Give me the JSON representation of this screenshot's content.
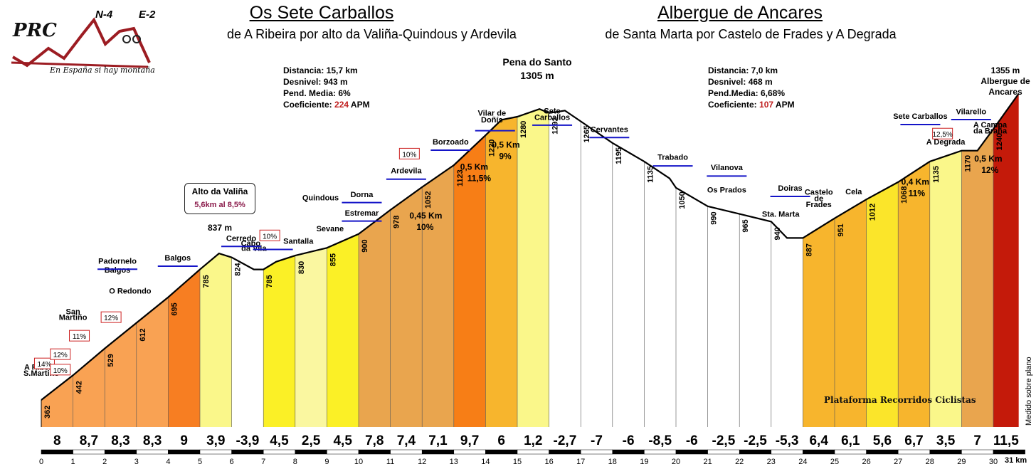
{
  "titles": {
    "left_title": "Os Sete Carballos",
    "left_subtitle": "de A Ribeira por alto da Valiña-Quindous y Ardevila",
    "right_title": "Albergue de Ancares",
    "right_subtitle": "de Santa Marta por Castelo de Frades y A Degrada"
  },
  "logo": {
    "brand": "PRC",
    "road1": "N-4",
    "road2": "E-2",
    "tagline": "En España si hay montaña"
  },
  "stats_left": {
    "distance": "Distancia: 15,7 km",
    "elevation": "Desnivel: 943 m",
    "avg_grade": "Pend. Media: 6%",
    "coef_label": "Coeficiente: ",
    "coef_value": "224",
    "coef_unit": " APM"
  },
  "stats_right": {
    "distance": "Distancia: 7,0 km",
    "elevation": "Desnivel: 468 m",
    "avg_grade": "Pend.Media: 6,68%",
    "coef_label": "Coeficiente: ",
    "coef_value": "107",
    "coef_unit": " APM"
  },
  "summit": {
    "name": "Pena do Santo",
    "altitude": "1305 m"
  },
  "finish": {
    "altitude": "1355 m",
    "name1": "Albergue de",
    "name2": "Ancares"
  },
  "callout": {
    "title": "Alto da Valiña",
    "detail": "5,6km al 8,5%",
    "altitude": "837 m"
  },
  "credit": "Plataforma Recorridos Ciclistas",
  "measured": "Medido sobre plano",
  "km_unit": "31 km",
  "colors": {
    "outline": "#000000",
    "arrow": "#1414c8",
    "grade_label_border": "#cc2222",
    "coef_red": "#c02020",
    "axis_bar": "#000000"
  },
  "chart_data": {
    "type": "area",
    "title": "Os Sete Carballos / Albergue de Ancares",
    "xlabel": "km",
    "ylabel": "",
    "x_ticks": [
      "0",
      "1",
      "2",
      "3",
      "4",
      "5",
      "6",
      "7",
      "8",
      "9",
      "10",
      "11",
      "12",
      "13",
      "14",
      "15",
      "16",
      "17",
      "18",
      "19",
      "20",
      "21",
      "22",
      "23",
      "24",
      "25",
      "26",
      "27",
      "28",
      "29",
      "30"
    ],
    "ylim": [
      300,
      1400
    ],
    "profile": [
      {
        "km": 0,
        "alt": 362
      },
      {
        "km": 1,
        "alt": 442
      },
      {
        "km": 2,
        "alt": 529
      },
      {
        "km": 3,
        "alt": 612
      },
      {
        "km": 4,
        "alt": 695
      },
      {
        "km": 5,
        "alt": 785
      },
      {
        "km": 5.6,
        "alt": 837
      },
      {
        "km": 6,
        "alt": 824
      },
      {
        "km": 6.7,
        "alt": 785
      },
      {
        "km": 7,
        "alt": 785
      },
      {
        "km": 7.4,
        "alt": 810
      },
      {
        "km": 8,
        "alt": 830
      },
      {
        "km": 8.6,
        "alt": 845
      },
      {
        "km": 9,
        "alt": 855
      },
      {
        "km": 10,
        "alt": 900
      },
      {
        "km": 11,
        "alt": 978
      },
      {
        "km": 12,
        "alt": 1052
      },
      {
        "km": 13,
        "alt": 1123
      },
      {
        "km": 14,
        "alt": 1220
      },
      {
        "km": 14.5,
        "alt": 1270
      },
      {
        "km": 15,
        "alt": 1280
      },
      {
        "km": 15.7,
        "alt": 1305
      },
      {
        "km": 16,
        "alt": 1292
      },
      {
        "km": 16.5,
        "alt": 1300
      },
      {
        "km": 17,
        "alt": 1265
      },
      {
        "km": 18,
        "alt": 1195
      },
      {
        "km": 19,
        "alt": 1135
      },
      {
        "km": 19.8,
        "alt": 1080
      },
      {
        "km": 20,
        "alt": 1050
      },
      {
        "km": 21,
        "alt": 990
      },
      {
        "km": 22,
        "alt": 965
      },
      {
        "km": 23,
        "alt": 940
      },
      {
        "km": 23.5,
        "alt": 887
      },
      {
        "km": 24,
        "alt": 887
      },
      {
        "km": 25,
        "alt": 951
      },
      {
        "km": 26,
        "alt": 1012
      },
      {
        "km": 27,
        "alt": 1068
      },
      {
        "km": 28,
        "alt": 1135
      },
      {
        "km": 29,
        "alt": 1170
      },
      {
        "km": 29.5,
        "alt": 1170
      },
      {
        "km": 30,
        "alt": 1240
      },
      {
        "km": 30.8,
        "alt": 1355
      }
    ],
    "segments": [
      {
        "start_km": 0,
        "end_km": 1,
        "grade": "8",
        "alt": "362",
        "color": "#f9a253"
      },
      {
        "start_km": 1,
        "end_km": 2,
        "grade": "8,7",
        "alt": "442",
        "color": "#f9a253"
      },
      {
        "start_km": 2,
        "end_km": 3,
        "grade": "8,3",
        "alt": "529",
        "color": "#f9a253"
      },
      {
        "start_km": 3,
        "end_km": 4,
        "grade": "8,3",
        "alt": "612",
        "color": "#f9a253"
      },
      {
        "start_km": 4,
        "end_km": 5,
        "grade": "9",
        "alt": "695",
        "color": "#f77e22"
      },
      {
        "start_km": 5,
        "end_km": 6,
        "grade": "3,9",
        "alt": "785",
        "color": "#faf78a"
      },
      {
        "start_km": 6,
        "end_km": 7,
        "grade": "-3,9",
        "alt": "824",
        "color": "#ffffff"
      },
      {
        "start_km": 7,
        "end_km": 8,
        "grade": "4,5",
        "alt": "785",
        "color": "#fbf026"
      },
      {
        "start_km": 8,
        "end_km": 9,
        "grade": "2,5",
        "alt": "830",
        "color": "#faf7a0"
      },
      {
        "start_km": 9,
        "end_km": 10,
        "grade": "4,5",
        "alt": "855",
        "color": "#fbf026"
      },
      {
        "start_km": 10,
        "end_km": 11,
        "grade": "7,8",
        "alt": "900",
        "color": "#e9a54e"
      },
      {
        "start_km": 11,
        "end_km": 12,
        "grade": "7,4",
        "alt": "978",
        "color": "#e9a54e"
      },
      {
        "start_km": 12,
        "end_km": 13,
        "grade": "7,1",
        "alt": "1052",
        "color": "#e9a54e"
      },
      {
        "start_km": 13,
        "end_km": 14,
        "grade": "9,7",
        "alt": "1123",
        "color": "#f77e16"
      },
      {
        "start_km": 14,
        "end_km": 15,
        "grade": "6",
        "alt": "1220",
        "color": "#f7b52d"
      },
      {
        "start_km": 15,
        "end_km": 16,
        "grade": "1,2",
        "alt": "1280",
        "color": "#faf78a"
      },
      {
        "start_km": 16,
        "end_km": 17,
        "grade": "-2,7",
        "alt": "1292",
        "color": "#ffffff"
      },
      {
        "start_km": 17,
        "end_km": 18,
        "grade": "-7",
        "alt": "1265",
        "color": "#ffffff"
      },
      {
        "start_km": 18,
        "end_km": 19,
        "grade": "-6",
        "alt": "1195",
        "color": "#ffffff"
      },
      {
        "start_km": 19,
        "end_km": 20,
        "grade": "-8,5",
        "alt": "1135",
        "color": "#ffffff"
      },
      {
        "start_km": 20,
        "end_km": 21,
        "grade": "-6",
        "alt": "1050",
        "color": "#ffffff"
      },
      {
        "start_km": 21,
        "end_km": 22,
        "grade": "-2,5",
        "alt": "990",
        "color": "#ffffff"
      },
      {
        "start_km": 22,
        "end_km": 23,
        "grade": "-2,5",
        "alt": "965",
        "color": "#ffffff"
      },
      {
        "start_km": 23,
        "end_km": 24,
        "grade": "-5,3",
        "alt": "940",
        "color": "#ffffff"
      },
      {
        "start_km": 24,
        "end_km": 25,
        "grade": "6,4",
        "alt": "887",
        "color": "#f7b52d"
      },
      {
        "start_km": 25,
        "end_km": 26,
        "grade": "6,1",
        "alt": "951",
        "color": "#f7b52d"
      },
      {
        "start_km": 26,
        "end_km": 27,
        "grade": "5,6",
        "alt": "1012",
        "color": "#fbe52a"
      },
      {
        "start_km": 27,
        "end_km": 28,
        "grade": "6,7",
        "alt": "1068",
        "color": "#f7b52d"
      },
      {
        "start_km": 28,
        "end_km": 29,
        "grade": "3,5",
        "alt": "1135",
        "color": "#faf78a"
      },
      {
        "start_km": 29,
        "end_km": 30,
        "grade": "7",
        "alt": "1170",
        "color": "#e9a54e"
      },
      {
        "start_km": 30,
        "end_km": 30.8,
        "grade": "11,5",
        "alt": "1240",
        "color": "#c41a0a"
      }
    ],
    "places": [
      {
        "name": "A Ribeira",
        "km": 0,
        "alt": 460
      },
      {
        "name": "S.Martiño",
        "km": 0,
        "alt": 440
      },
      {
        "name": "San",
        "km": 1,
        "alt": 640
      },
      {
        "name": "Martiño",
        "km": 1,
        "alt": 622
      },
      {
        "name": "Padornelo",
        "km": 2.4,
        "alt": 804
      },
      {
        "name": "Balgos",
        "km": 2.4,
        "alt": 775
      },
      {
        "name": "O Redondo",
        "km": 2.8,
        "alt": 707
      },
      {
        "name": "Balgos",
        "km": 4.3,
        "alt": 814
      },
      {
        "name": "Cerredo",
        "km": 6.3,
        "alt": 878
      },
      {
        "name": "Cabo",
        "km": 6.6,
        "alt": 862
      },
      {
        "name": "da Vila",
        "km": 6.7,
        "alt": 845
      },
      {
        "name": "Santalla",
        "km": 8.1,
        "alt": 868
      },
      {
        "name": "Quindous",
        "km": 8.8,
        "alt": 1009
      },
      {
        "name": "Sevane",
        "km": 9.1,
        "alt": 909
      },
      {
        "name": "Estremar",
        "km": 10.1,
        "alt": 960
      },
      {
        "name": "Dorna",
        "km": 10.1,
        "alt": 1020
      },
      {
        "name": "Ardevila",
        "km": 11.5,
        "alt": 1097
      },
      {
        "name": "Borzoado",
        "km": 12.9,
        "alt": 1190
      },
      {
        "name": "Vilar de",
        "km": 14.2,
        "alt": 1283
      },
      {
        "name": "Doñís",
        "km": 14.2,
        "alt": 1262
      },
      {
        "name": "Sete",
        "km": 16.1,
        "alt": 1290
      },
      {
        "name": "Carballos",
        "km": 16.1,
        "alt": 1270
      },
      {
        "name": "Cervantes",
        "km": 17.9,
        "alt": 1230
      },
      {
        "name": "Trabado",
        "km": 19.9,
        "alt": 1140
      },
      {
        "name": "Vilanova",
        "km": 21.6,
        "alt": 1107
      },
      {
        "name": "Os Prados",
        "km": 21.6,
        "alt": 1034
      },
      {
        "name": "Doiras",
        "km": 23.6,
        "alt": 1040
      },
      {
        "name": "Sta. Marta",
        "km": 23.3,
        "alt": 956
      },
      {
        "name": "Castelo",
        "km": 24.5,
        "alt": 1027
      },
      {
        "name": "de",
        "km": 24.5,
        "alt": 1007
      },
      {
        "name": "Frades",
        "km": 24.5,
        "alt": 987
      },
      {
        "name": "Cela",
        "km": 25.6,
        "alt": 1029
      },
      {
        "name": "Sete Carballos",
        "km": 27.7,
        "alt": 1273
      },
      {
        "name": "A Degrada",
        "km": 28.5,
        "alt": 1190
      },
      {
        "name": "Vilarello",
        "km": 29.3,
        "alt": 1288
      },
      {
        "name": "A Campa",
        "km": 29.9,
        "alt": 1246
      },
      {
        "name": "da Braña",
        "km": 29.9,
        "alt": 1226
      }
    ],
    "grade_labels": [
      "14%",
      "12%",
      "10%",
      "11%",
      "12%",
      "10%",
      "10%",
      "12,5%"
    ],
    "ramp_notes": [
      {
        "len": "0,45 Km",
        "grade": "10%"
      },
      {
        "len": "0,5 Km",
        "grade": "11,5%"
      },
      {
        "len": "0,5 Km",
        "grade": "9%"
      },
      {
        "len": "0,4 Km",
        "grade": "11%"
      },
      {
        "len": "0,5 Km",
        "grade": "12%"
      }
    ],
    "grid": false,
    "legend": "none"
  }
}
